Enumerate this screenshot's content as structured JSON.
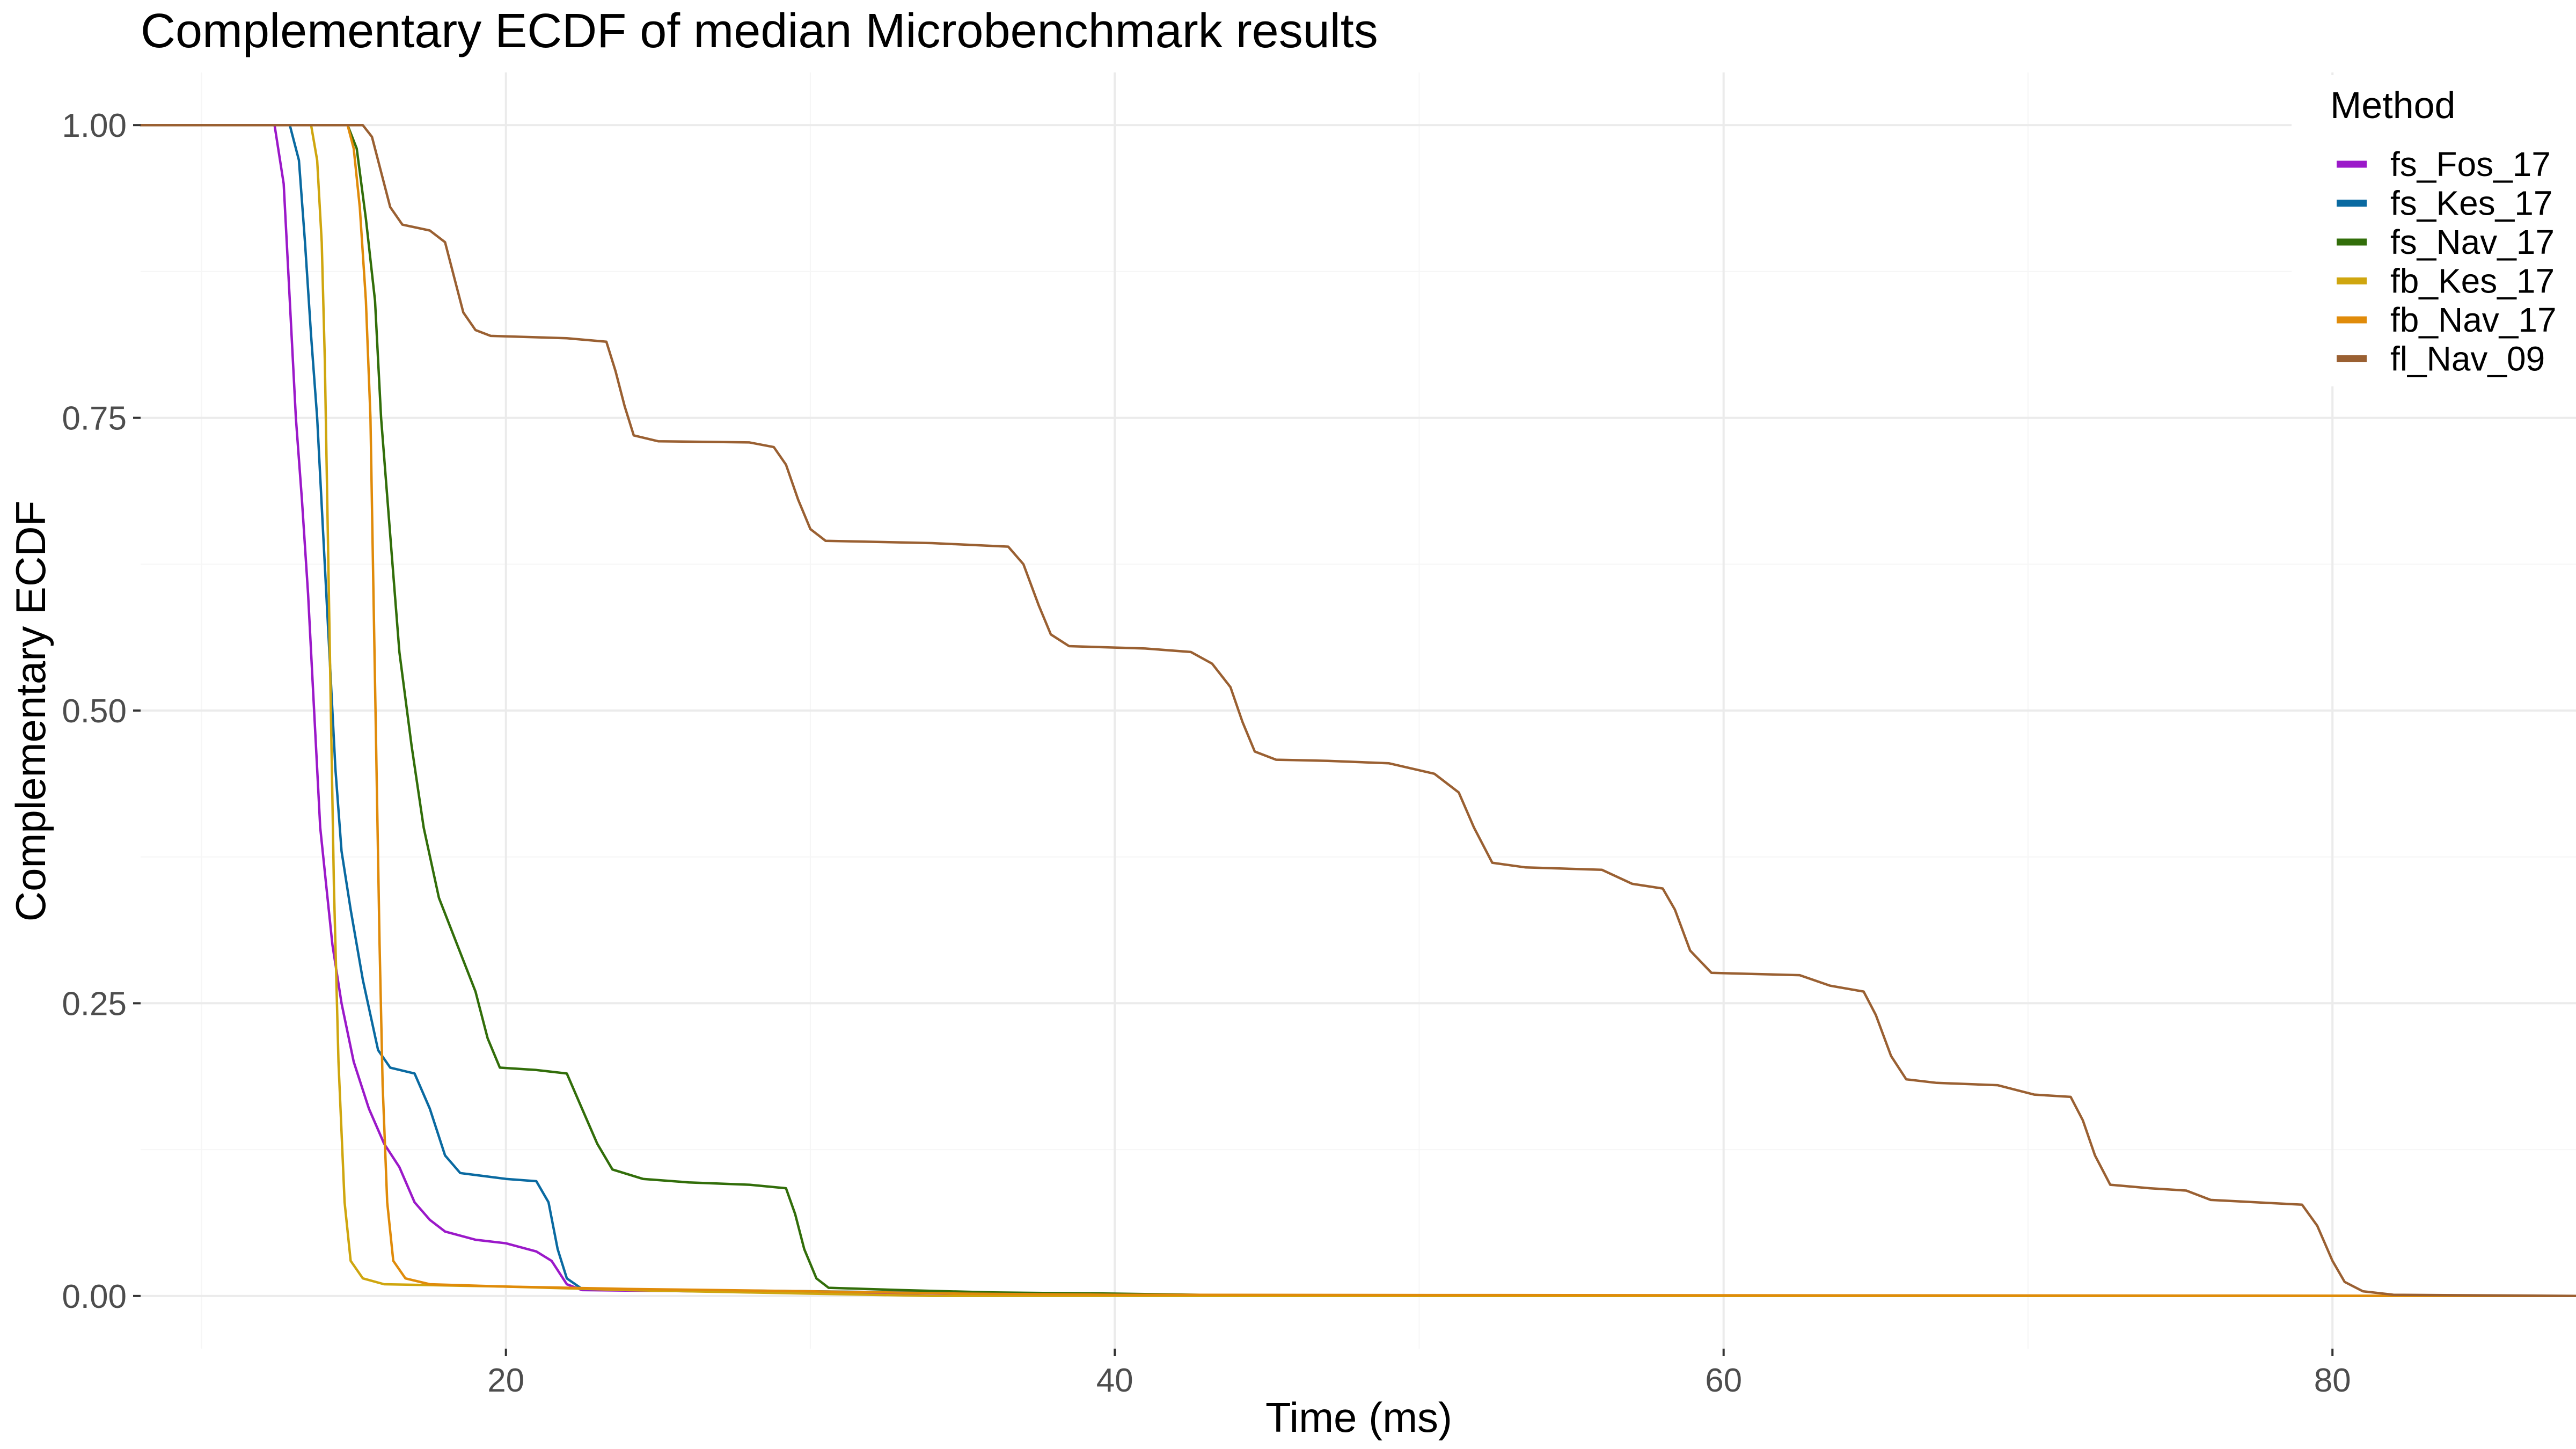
{
  "chart_data": {
    "type": "line",
    "title": "Complementary ECDF of median Microbenchmark results",
    "xlabel": "Time (ms)",
    "ylabel": "Complementary ECDF",
    "xlim": [
      8,
      88
    ],
    "ylim": [
      -0.045,
      1.045
    ],
    "x_ticks": [
      20,
      40,
      60,
      80
    ],
    "x_tick_labels": [
      "20",
      "40",
      "60",
      "80"
    ],
    "y_ticks": [
      0,
      0.25,
      0.5,
      0.75,
      1.0
    ],
    "y_tick_labels": [
      "0.00",
      "0.25",
      "0.50",
      "0.75",
      "1.00"
    ],
    "grid": true,
    "legend": {
      "title": "Method",
      "position": "top-right"
    },
    "series": [
      {
        "name": "fs_Fos_17",
        "color": "#9b19c9",
        "points": [
          [
            8,
            1
          ],
          [
            12.4,
            1
          ],
          [
            12.7,
            0.95
          ],
          [
            12.9,
            0.85
          ],
          [
            13.1,
            0.75
          ],
          [
            13.3,
            0.68
          ],
          [
            13.5,
            0.6
          ],
          [
            13.7,
            0.5
          ],
          [
            13.9,
            0.4
          ],
          [
            14.1,
            0.35
          ],
          [
            14.3,
            0.3
          ],
          [
            14.6,
            0.25
          ],
          [
            15,
            0.2
          ],
          [
            15.5,
            0.16
          ],
          [
            16,
            0.13
          ],
          [
            16.5,
            0.11
          ],
          [
            17,
            0.08
          ],
          [
            17.5,
            0.065
          ],
          [
            18,
            0.055
          ],
          [
            19,
            0.048
          ],
          [
            20,
            0.045
          ],
          [
            21,
            0.038
          ],
          [
            21.5,
            0.03
          ],
          [
            22,
            0.01
          ],
          [
            22.5,
            0.005
          ],
          [
            30,
            0.003
          ],
          [
            40,
            0.001
          ],
          [
            44,
            0
          ],
          [
            88,
            0
          ]
        ]
      },
      {
        "name": "fs_Kes_17",
        "color": "#0a6aa1",
        "points": [
          [
            8,
            1
          ],
          [
            12.9,
            1
          ],
          [
            13.2,
            0.97
          ],
          [
            13.4,
            0.9
          ],
          [
            13.6,
            0.82
          ],
          [
            13.8,
            0.75
          ],
          [
            14,
            0.65
          ],
          [
            14.2,
            0.55
          ],
          [
            14.4,
            0.45
          ],
          [
            14.6,
            0.38
          ],
          [
            14.9,
            0.33
          ],
          [
            15.3,
            0.27
          ],
          [
            15.8,
            0.21
          ],
          [
            16.2,
            0.195
          ],
          [
            17,
            0.19
          ],
          [
            17.5,
            0.16
          ],
          [
            18,
            0.12
          ],
          [
            18.5,
            0.105
          ],
          [
            20,
            0.1
          ],
          [
            21,
            0.098
          ],
          [
            21.4,
            0.08
          ],
          [
            21.7,
            0.04
          ],
          [
            22,
            0.015
          ],
          [
            22.5,
            0.006
          ],
          [
            30,
            0.004
          ],
          [
            40,
            0.001
          ],
          [
            44,
            0
          ],
          [
            88,
            0
          ]
        ]
      },
      {
        "name": "fs_Nav_17",
        "color": "#326e0a",
        "points": [
          [
            8,
            1
          ],
          [
            14.8,
            1
          ],
          [
            15.1,
            0.98
          ],
          [
            15.4,
            0.92
          ],
          [
            15.7,
            0.85
          ],
          [
            15.9,
            0.75
          ],
          [
            16.2,
            0.65
          ],
          [
            16.5,
            0.55
          ],
          [
            16.9,
            0.47
          ],
          [
            17.3,
            0.4
          ],
          [
            17.8,
            0.34
          ],
          [
            18.4,
            0.3
          ],
          [
            19,
            0.26
          ],
          [
            19.4,
            0.22
          ],
          [
            19.8,
            0.195
          ],
          [
            21,
            0.193
          ],
          [
            22,
            0.19
          ],
          [
            22.5,
            0.16
          ],
          [
            23,
            0.13
          ],
          [
            23.5,
            0.108
          ],
          [
            24.5,
            0.1
          ],
          [
            26,
            0.097
          ],
          [
            28,
            0.095
          ],
          [
            29.2,
            0.092
          ],
          [
            29.5,
            0.07
          ],
          [
            29.8,
            0.04
          ],
          [
            30.2,
            0.015
          ],
          [
            30.6,
            0.007
          ],
          [
            33,
            0.005
          ],
          [
            36,
            0.003
          ],
          [
            40,
            0.002
          ],
          [
            44,
            0.0005
          ],
          [
            46,
            0
          ],
          [
            88,
            0
          ]
        ]
      },
      {
        "name": "fb_Kes_17",
        "color": "#cfa60f",
        "points": [
          [
            8,
            1
          ],
          [
            13.6,
            1
          ],
          [
            13.8,
            0.97
          ],
          [
            13.95,
            0.9
          ],
          [
            14.05,
            0.8
          ],
          [
            14.15,
            0.65
          ],
          [
            14.25,
            0.5
          ],
          [
            14.35,
            0.35
          ],
          [
            14.5,
            0.2
          ],
          [
            14.7,
            0.08
          ],
          [
            14.9,
            0.03
          ],
          [
            15.3,
            0.015
          ],
          [
            16,
            0.01
          ],
          [
            20,
            0.008
          ],
          [
            24,
            0.005
          ],
          [
            30,
            0.002
          ],
          [
            34,
            0
          ],
          [
            88,
            0
          ]
        ]
      },
      {
        "name": "fb_Nav_17",
        "color": "#e08b0a",
        "points": [
          [
            8,
            1
          ],
          [
            14.8,
            1
          ],
          [
            15,
            0.98
          ],
          [
            15.2,
            0.93
          ],
          [
            15.4,
            0.85
          ],
          [
            15.55,
            0.75
          ],
          [
            15.65,
            0.6
          ],
          [
            15.75,
            0.45
          ],
          [
            15.85,
            0.3
          ],
          [
            15.95,
            0.18
          ],
          [
            16.1,
            0.08
          ],
          [
            16.3,
            0.03
          ],
          [
            16.7,
            0.015
          ],
          [
            17.5,
            0.01
          ],
          [
            20,
            0.008
          ],
          [
            24,
            0.006
          ],
          [
            30,
            0.004
          ],
          [
            35,
            0.002
          ],
          [
            40,
            0.001
          ],
          [
            88,
            0
          ]
        ]
      },
      {
        "name": "fl_Nav_09",
        "color": "#9a6032",
        "points": [
          [
            8,
            1
          ],
          [
            15.3,
            1
          ],
          [
            15.6,
            0.99
          ],
          [
            15.9,
            0.96
          ],
          [
            16.2,
            0.93
          ],
          [
            16.6,
            0.915
          ],
          [
            17.5,
            0.91
          ],
          [
            18,
            0.9
          ],
          [
            18.3,
            0.87
          ],
          [
            18.6,
            0.84
          ],
          [
            19,
            0.825
          ],
          [
            19.5,
            0.82
          ],
          [
            22,
            0.818
          ],
          [
            23.3,
            0.815
          ],
          [
            23.6,
            0.79
          ],
          [
            23.9,
            0.76
          ],
          [
            24.2,
            0.735
          ],
          [
            25,
            0.73
          ],
          [
            28,
            0.729
          ],
          [
            28.8,
            0.725
          ],
          [
            29.2,
            0.71
          ],
          [
            29.6,
            0.68
          ],
          [
            30,
            0.655
          ],
          [
            30.5,
            0.645
          ],
          [
            34,
            0.643
          ],
          [
            36.5,
            0.64
          ],
          [
            37,
            0.625
          ],
          [
            37.5,
            0.59
          ],
          [
            37.9,
            0.565
          ],
          [
            38.5,
            0.555
          ],
          [
            41,
            0.553
          ],
          [
            42.5,
            0.55
          ],
          [
            43.2,
            0.54
          ],
          [
            43.8,
            0.52
          ],
          [
            44.2,
            0.49
          ],
          [
            44.6,
            0.465
          ],
          [
            45.3,
            0.458
          ],
          [
            47,
            0.457
          ],
          [
            49,
            0.455
          ],
          [
            50.5,
            0.446
          ],
          [
            51.3,
            0.43
          ],
          [
            51.8,
            0.4
          ],
          [
            52.4,
            0.37
          ],
          [
            53.5,
            0.366
          ],
          [
            56,
            0.364
          ],
          [
            57,
            0.352
          ],
          [
            58,
            0.348
          ],
          [
            58.4,
            0.33
          ],
          [
            58.9,
            0.295
          ],
          [
            59.6,
            0.276
          ],
          [
            61,
            0.275
          ],
          [
            62.5,
            0.274
          ],
          [
            63.5,
            0.265
          ],
          [
            64.6,
            0.26
          ],
          [
            65,
            0.24
          ],
          [
            65.5,
            0.205
          ],
          [
            66,
            0.185
          ],
          [
            67,
            0.182
          ],
          [
            69,
            0.18
          ],
          [
            70.2,
            0.172
          ],
          [
            71.4,
            0.17
          ],
          [
            71.8,
            0.15
          ],
          [
            72.2,
            0.12
          ],
          [
            72.7,
            0.095
          ],
          [
            74,
            0.092
          ],
          [
            75.2,
            0.09
          ],
          [
            76,
            0.082
          ],
          [
            79,
            0.078
          ],
          [
            79.5,
            0.06
          ],
          [
            80,
            0.03
          ],
          [
            80.4,
            0.012
          ],
          [
            81,
            0.004
          ],
          [
            82,
            0.001
          ],
          [
            88,
            0
          ]
        ]
      }
    ]
  }
}
